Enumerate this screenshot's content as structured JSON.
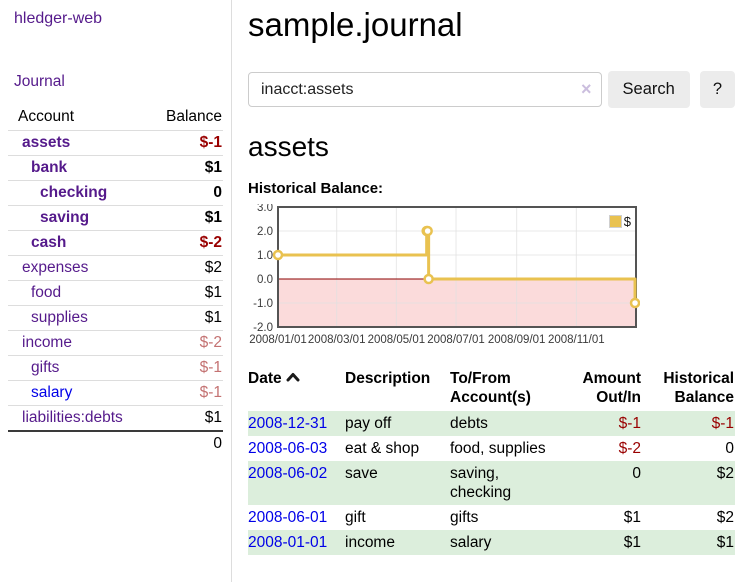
{
  "app": {
    "brand": "hledger-web"
  },
  "sidebar": {
    "journal_link": "Journal",
    "accounts_table": {
      "header_account": "Account",
      "header_balance": "Balance",
      "rows": [
        {
          "name": "assets",
          "balance": "$-1",
          "depth": "depth-1",
          "weight": "bold",
          "name_class": "link-purple",
          "balance_class": "neg-strong"
        },
        {
          "name": "bank",
          "balance": "$1",
          "depth": "depth-2",
          "weight": "bold",
          "name_class": "link-purple",
          "balance_class": ""
        },
        {
          "name": "checking",
          "balance": "0",
          "depth": "depth-3",
          "weight": "bold",
          "name_class": "link-purple",
          "balance_class": ""
        },
        {
          "name": "saving",
          "balance": "$1",
          "depth": "depth-3",
          "weight": "bold",
          "name_class": "link-purple",
          "balance_class": ""
        },
        {
          "name": "cash",
          "balance": "$-2",
          "depth": "depth-2",
          "weight": "bold",
          "name_class": "link-purple",
          "balance_class": "neg-strong"
        },
        {
          "name": "expenses",
          "balance": "$2",
          "depth": "depth-1",
          "weight": "",
          "name_class": "link-purple",
          "balance_class": ""
        },
        {
          "name": "food",
          "balance": "$1",
          "depth": "depth-2",
          "weight": "",
          "name_class": "link-purple",
          "balance_class": ""
        },
        {
          "name": "supplies",
          "balance": "$1",
          "depth": "depth-2",
          "weight": "",
          "name_class": "link-purple",
          "balance_class": ""
        },
        {
          "name": "income",
          "balance": "$-2",
          "depth": "depth-1",
          "weight": "",
          "name_class": "link-purple",
          "balance_class": "neg-soft"
        },
        {
          "name": "gifts",
          "balance": "$-1",
          "depth": "depth-2",
          "weight": "",
          "name_class": "link-purple",
          "balance_class": "neg-soft"
        },
        {
          "name": "salary",
          "balance": "$-1",
          "depth": "depth-2",
          "weight": "",
          "name_class": "link-blue",
          "balance_class": "neg-soft"
        },
        {
          "name": "liabilities:debts",
          "balance": "$1",
          "depth": "depth-1",
          "weight": "",
          "name_class": "link-purple",
          "balance_class": ""
        }
      ],
      "total": "0"
    }
  },
  "main": {
    "title": "sample.journal",
    "search": {
      "value": "inacct:assets",
      "clear_icon": "×",
      "search_button": "Search",
      "help_button": "?"
    },
    "account_heading": "assets",
    "section_label": "Historical Balance:"
  },
  "chart_data": {
    "type": "line",
    "step": true,
    "title": "Historical Balance",
    "series": [
      {
        "name": "$",
        "points": [
          {
            "x": "2008-01-01",
            "y": 1
          },
          {
            "x": "2008-06-01",
            "y": 2
          },
          {
            "x": "2008-06-02",
            "y": 2
          },
          {
            "x": "2008-06-03",
            "y": 0
          },
          {
            "x": "2008-12-31",
            "y": -1
          }
        ]
      }
    ],
    "xlim": [
      "2008-01-01",
      "2009-01-01"
    ],
    "ylim": [
      -2,
      3
    ],
    "xticks": [
      {
        "x": "2008-01-01",
        "label": "2008/01/01"
      },
      {
        "x": "2008-03-01",
        "label": "2008/03/01"
      },
      {
        "x": "2008-05-01",
        "label": "2008/05/01"
      },
      {
        "x": "2008-07-01",
        "label": "2008/07/01"
      },
      {
        "x": "2008-09-01",
        "label": "2008/09/01"
      },
      {
        "x": "2008-11-01",
        "label": "2008/11/01"
      }
    ],
    "yticks": [
      {
        "y": 3,
        "label": "3.0"
      },
      {
        "y": 2,
        "label": "2.0"
      },
      {
        "y": 1,
        "label": "1.0"
      },
      {
        "y": 0,
        "label": "0.0"
      },
      {
        "y": -1,
        "label": "-1.0"
      },
      {
        "y": -2,
        "label": "-2.0"
      }
    ],
    "legend": {
      "label": "$",
      "position": "top-right"
    },
    "grid": true,
    "negative_region_shaded": true,
    "colors": {
      "line": "#E9C250",
      "marker_fill": "#FFFFFF",
      "negative_fill": "#FBDBDB",
      "zero_line": "#8B0000",
      "border": "#545454",
      "grid": "#E0E0E0",
      "tick_text": "#3A3A3A"
    }
  },
  "register": {
    "headers": {
      "date": "Date",
      "sort": "asc",
      "description": "Description",
      "accounts": "To/From Account(s)",
      "amount": "Amount Out/In",
      "balance": "Historical Balance"
    },
    "rows": [
      {
        "date": "2008-12-31",
        "description": "pay off",
        "accounts": "debts",
        "amount": "$-1",
        "balance": "$-1",
        "amount_class": "neg-strong",
        "balance_class": "neg-strong"
      },
      {
        "date": "2008-06-03",
        "description": "eat & shop",
        "accounts": "food, supplies",
        "amount": "$-2",
        "balance": "0",
        "amount_class": "neg-strong",
        "balance_class": ""
      },
      {
        "date": "2008-06-02",
        "description": "save",
        "accounts": "saving, checking",
        "amount": "0",
        "balance": "$2",
        "amount_class": "",
        "balance_class": ""
      },
      {
        "date": "2008-06-01",
        "description": "gift",
        "accounts": "gifts",
        "amount": "$1",
        "balance": "$2",
        "amount_class": "",
        "balance_class": ""
      },
      {
        "date": "2008-01-01",
        "description": "income",
        "accounts": "salary",
        "amount": "$1",
        "balance": "$1",
        "amount_class": "",
        "balance_class": ""
      }
    ]
  }
}
